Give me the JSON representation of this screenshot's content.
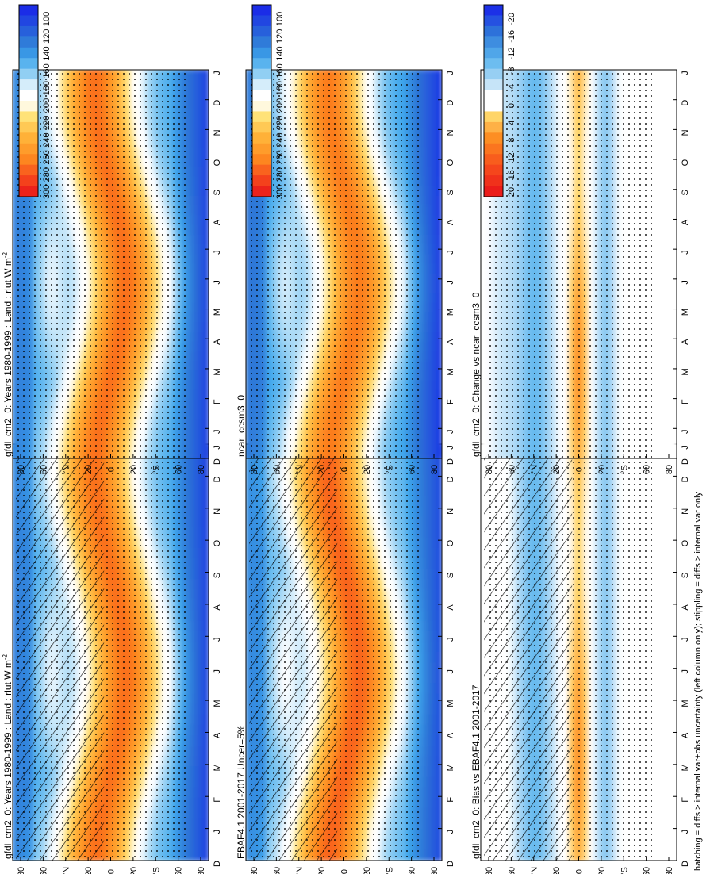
{
  "figure": {
    "footnote": "hatching = diffs > internal var+obs uncertainty (left column only); stippling = diffs > internal var only"
  },
  "chart_data": [
    {
      "type": "heatmap",
      "title": "gfdl_cm2_0: Years 1980-1999 : Land : rlut W m",
      "title_superscript": "-2",
      "variable": "rlut",
      "units": "W m-2",
      "x_label": "month",
      "x_ticks": [
        "D",
        "J",
        "F",
        "M",
        "A",
        "M",
        "J",
        "J",
        "A",
        "S",
        "O",
        "N",
        "D",
        "J"
      ],
      "y_label": "latitude",
      "y_ticks": [
        "80",
        "60",
        "°N",
        "20",
        "0",
        "20",
        "°S",
        "60",
        "80"
      ],
      "ylim": [
        -90,
        90
      ],
      "colorbar_ticks": [
        "300",
        "280",
        "260",
        "240",
        "220",
        "200",
        "180",
        "160",
        "140",
        "120",
        "100"
      ],
      "colorbar_range": [
        90,
        310
      ],
      "scheme": "absolute",
      "hatching": true,
      "stippling": true
    },
    {
      "type": "heatmap",
      "title": "gfdl_cm2_0: Years 1980-1999 : Land : rlut W m",
      "title_superscript": "-2",
      "variable": "rlut",
      "units": "W m-2",
      "x_label": "month",
      "x_ticks": [
        "D",
        "J",
        "F",
        "M",
        "A",
        "M",
        "J",
        "J",
        "A",
        "S",
        "O",
        "N",
        "D",
        "J"
      ],
      "y_label": "latitude",
      "y_ticks": [
        "80",
        "60",
        "°N",
        "20",
        "0",
        "20",
        "°S",
        "60",
        "80"
      ],
      "ylim": [
        -90,
        90
      ],
      "colorbar_ticks": [
        "300",
        "280",
        "260",
        "240",
        "220",
        "200",
        "180",
        "160",
        "140",
        "120",
        "100"
      ],
      "colorbar_range": [
        90,
        310
      ],
      "scheme": "absolute",
      "hatching": false,
      "stippling": true
    },
    {
      "type": "heatmap",
      "title": "EBAF4.1 2001-2017 Uncer=5%",
      "variable": "rlut",
      "x_label": "month",
      "x_ticks": [
        "D",
        "J",
        "F",
        "M",
        "A",
        "M",
        "J",
        "J",
        "A",
        "S",
        "O",
        "N",
        "D",
        "J"
      ],
      "y_label": "latitude",
      "y_ticks": [
        "80",
        "60",
        "°N",
        "20",
        "0",
        "20",
        "°S",
        "60",
        "80"
      ],
      "ylim": [
        -90,
        90
      ],
      "colorbar_ticks": [
        "300",
        "280",
        "260",
        "240",
        "220",
        "200",
        "180",
        "160",
        "140",
        "120",
        "100"
      ],
      "colorbar_range": [
        90,
        310
      ],
      "scheme": "absolute",
      "hatching": true,
      "stippling": true
    },
    {
      "type": "heatmap",
      "title": "ncar_ccsm3_0",
      "variable": "rlut",
      "x_label": "month",
      "x_ticks": [
        "D",
        "J",
        "F",
        "M",
        "A",
        "M",
        "J",
        "J",
        "A",
        "S",
        "O",
        "N",
        "D",
        "J"
      ],
      "y_label": "latitude",
      "y_ticks": [
        "80",
        "60",
        "°N",
        "20",
        "0",
        "20",
        "°S",
        "60",
        "80"
      ],
      "ylim": [
        -90,
        90
      ],
      "colorbar_ticks": [
        "300",
        "280",
        "260",
        "240",
        "220",
        "200",
        "180",
        "160",
        "140",
        "120",
        "100"
      ],
      "colorbar_range": [
        90,
        310
      ],
      "scheme": "absolute",
      "hatching": false,
      "stippling": true
    },
    {
      "type": "heatmap",
      "title": "gfdl_cm2_0: Bias vs EBAF4.1 2001-2017",
      "variable": "rlut",
      "x_label": "month",
      "x_ticks": [
        "D",
        "J",
        "F",
        "M",
        "A",
        "M",
        "J",
        "J",
        "A",
        "S",
        "O",
        "N",
        "D",
        "J"
      ],
      "y_label": "latitude",
      "y_ticks": [
        "80",
        "60",
        "°N",
        "20",
        "0",
        "20",
        "°S",
        "60",
        "80"
      ],
      "ylim": [
        -90,
        90
      ],
      "colorbar_ticks": [
        "20",
        "16",
        "12",
        "8",
        "4",
        "0",
        "-4",
        "-8",
        "-12",
        "-16",
        "-20"
      ],
      "colorbar_range": [
        -22,
        22
      ],
      "scheme": "difference",
      "hatching": true,
      "stippling": true
    },
    {
      "type": "heatmap",
      "title": "gfdl_cm2_0: Change vs ncar_ccsm3_0",
      "variable": "rlut",
      "x_label": "month",
      "x_ticks": [
        "D",
        "J",
        "F",
        "M",
        "A",
        "M",
        "J",
        "J",
        "A",
        "S",
        "O",
        "N",
        "D",
        "J"
      ],
      "y_label": "latitude",
      "y_ticks": [
        "80",
        "60",
        "°N",
        "20",
        "0",
        "20",
        "°S",
        "60",
        "80"
      ],
      "ylim": [
        -90,
        90
      ],
      "colorbar_ticks": [
        "20",
        "16",
        "12",
        "8",
        "4",
        "0",
        "-4",
        "-8",
        "-12",
        "-16",
        "-20"
      ],
      "colorbar_range": [
        -22,
        22
      ],
      "scheme": "difference",
      "hatching": false,
      "stippling": true
    }
  ]
}
